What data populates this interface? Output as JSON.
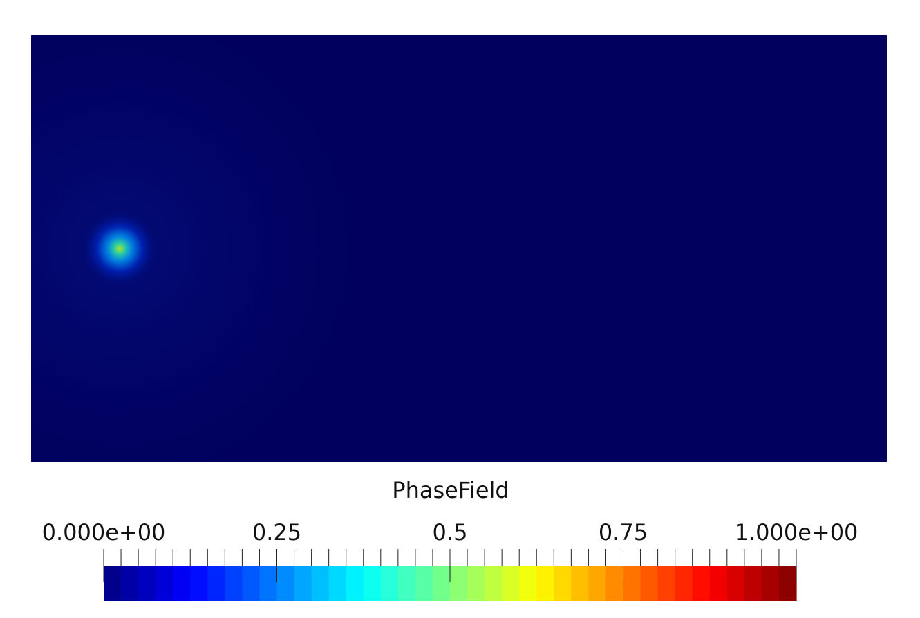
{
  "colorbar": {
    "title": "PhaseField",
    "range": [
      0,
      1
    ],
    "ticks": [
      {
        "value": 0,
        "label": "0.000e+00"
      },
      0.25,
      0.5,
      0.75,
      {
        "value": 1,
        "label": "1.000e+00"
      }
    ],
    "minor_tick_step": 0.025,
    "colormap": "jet",
    "color_bands": 40
  }
}
